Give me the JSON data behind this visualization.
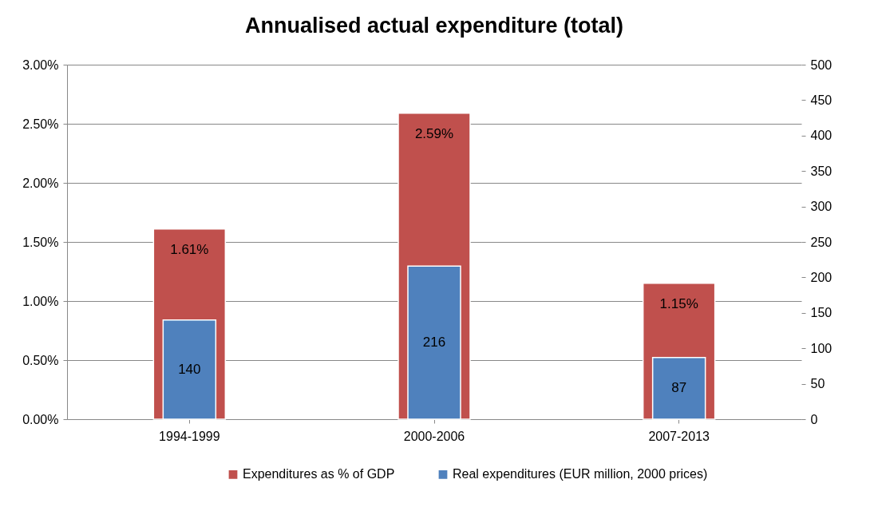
{
  "chart_data": {
    "type": "bar",
    "title": "Annualised actual expenditure (total)",
    "categories": [
      "1994-1999",
      "2000-2006",
      "2007-2013"
    ],
    "series": [
      {
        "name": "Expenditures as % of GDP",
        "color": "#c0504d",
        "values": [
          1.61,
          2.59,
          1.15
        ],
        "value_labels": [
          "1.61%",
          "2.59%",
          "1.15%"
        ]
      },
      {
        "name": "Real expenditures (EUR million, 2000 prices)",
        "color": "#4f81bd",
        "values": [
          140,
          216,
          87
        ],
        "axis": "y2",
        "value_labels": [
          "140",
          "216",
          "87"
        ]
      }
    ],
    "ylim": [
      0,
      3
    ],
    "yticks": [
      {
        "value": 0,
        "label": "0.00%"
      },
      {
        "value": 0.5,
        "label": "0.50%"
      },
      {
        "value": 1,
        "label": "1.00%"
      },
      {
        "value": 1.5,
        "label": "1.50%"
      },
      {
        "value": 2,
        "label": "2.00%"
      },
      {
        "value": 2.5,
        "label": "2.50%"
      },
      {
        "value": 3,
        "label": "3.00%"
      }
    ],
    "y2lim": [
      0,
      500
    ],
    "y2ticks": [
      0,
      50,
      100,
      150,
      200,
      250,
      300,
      350,
      400,
      450,
      500
    ],
    "grid": "y",
    "legend": "bottom"
  }
}
